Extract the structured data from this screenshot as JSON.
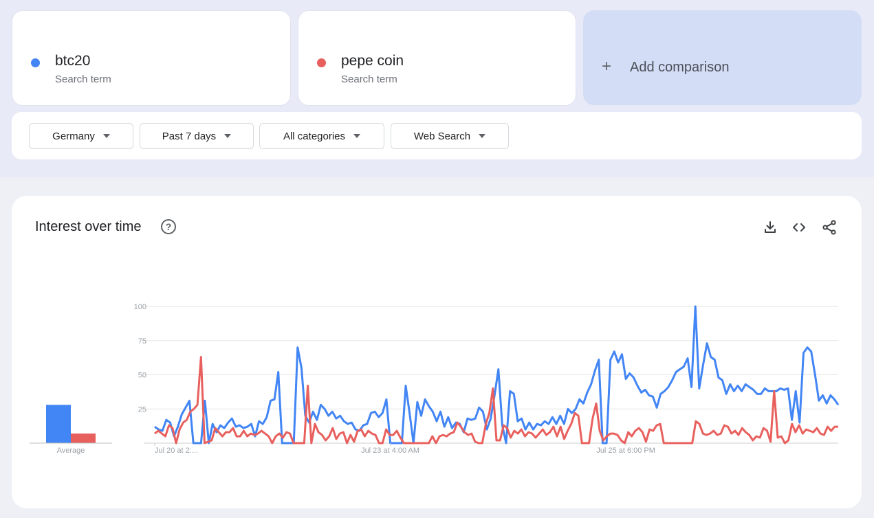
{
  "terms": [
    {
      "label": "btc20",
      "sublabel": "Search term",
      "color": "#4285f4"
    },
    {
      "label": "pepe coin",
      "sublabel": "Search term",
      "color": "#e8605d"
    }
  ],
  "add_comparison": {
    "label": "Add comparison",
    "icon": "plus-icon"
  },
  "filters": {
    "region": "Germany",
    "period": "Past 7 days",
    "category": "All categories",
    "search_type": "Web Search"
  },
  "chart_section": {
    "title": "Interest over time",
    "icons": [
      "help-icon",
      "download-icon",
      "embed-code-icon",
      "share-icon"
    ]
  },
  "chart_data": {
    "type": "line",
    "ylim": [
      0,
      100
    ],
    "y_ticks": [
      25,
      50,
      75,
      100
    ],
    "x_tick_labels": [
      "Jul 20 at 2:...",
      "Jul 23 at 4:00 AM",
      "Jul 25 at 6:00 PM"
    ],
    "x_tick_positions": [
      0,
      61,
      122
    ],
    "average_label": "Average",
    "averages": [
      {
        "name": "btc20",
        "value": 28
      },
      {
        "name": "pepe coin",
        "value": 7
      }
    ],
    "series": [
      {
        "name": "btc20",
        "color": "#4285f4",
        "values": [
          12,
          10,
          9,
          17,
          15,
          5,
          12,
          21,
          26,
          31,
          0,
          0,
          0,
          31,
          0,
          14,
          8,
          13,
          11,
          15,
          18,
          12,
          13,
          11,
          12,
          14,
          5,
          16,
          14,
          19,
          31,
          32,
          52,
          0,
          0,
          0,
          0,
          70,
          55,
          20,
          15,
          23,
          17,
          28,
          25,
          20,
          23,
          18,
          20,
          16,
          14,
          15,
          10,
          9,
          13,
          14,
          22,
          23,
          19,
          22,
          32,
          0,
          0,
          0,
          0,
          42,
          22,
          0,
          30,
          20,
          32,
          27,
          23,
          16,
          23,
          12,
          19,
          11,
          15,
          14,
          8,
          18,
          17,
          18,
          26,
          23,
          10,
          18,
          35,
          54,
          13,
          0,
          38,
          36,
          16,
          18,
          10,
          15,
          10,
          14,
          13,
          16,
          14,
          19,
          14,
          20,
          14,
          25,
          22,
          25,
          32,
          29,
          37,
          43,
          53,
          61,
          0,
          0,
          61,
          67,
          59,
          65,
          47,
          51,
          48,
          42,
          37,
          39,
          35,
          34,
          26,
          36,
          38,
          41,
          46,
          52,
          54,
          56,
          62,
          41,
          100,
          40,
          57,
          73,
          63,
          61,
          48,
          46,
          36,
          43,
          38,
          42,
          38,
          43,
          41,
          39,
          36,
          36,
          40,
          38,
          38,
          38,
          40,
          39,
          40,
          17,
          38,
          15,
          66,
          70,
          67,
          50,
          31,
          35,
          29,
          35,
          32,
          28
        ]
      },
      {
        "name": "pepe coin",
        "color": "#e8605d",
        "values": [
          7,
          9,
          7,
          5,
          13,
          11,
          0,
          10,
          15,
          17,
          23,
          25,
          28,
          63,
          0,
          1,
          2,
          11,
          8,
          5,
          8,
          8,
          11,
          5,
          5,
          9,
          5,
          7,
          6,
          7,
          9,
          7,
          5,
          0,
          5,
          7,
          4,
          8,
          7,
          0,
          0,
          0,
          0,
          42,
          0,
          14,
          8,
          6,
          2,
          5,
          11,
          3,
          7,
          8,
          0,
          6,
          1,
          9,
          10,
          5,
          9,
          7,
          6,
          0,
          0,
          10,
          6,
          6,
          9,
          4,
          0,
          0,
          0,
          0,
          0,
          0,
          0,
          0,
          5,
          0,
          5,
          6,
          5,
          7,
          8,
          15,
          12,
          8,
          6,
          7,
          1,
          0,
          0,
          14,
          22,
          40,
          2,
          2,
          13,
          11,
          4,
          9,
          7,
          10,
          5,
          8,
          7,
          4,
          7,
          10,
          6,
          8,
          12,
          5,
          12,
          3,
          9,
          14,
          22,
          20,
          0,
          0,
          0,
          18,
          29,
          9,
          2,
          5,
          7,
          7,
          6,
          2,
          0,
          8,
          5,
          9,
          11,
          8,
          1,
          10,
          9,
          13,
          14,
          0,
          0,
          0,
          0,
          0,
          0,
          0,
          0,
          0,
          16,
          14,
          7,
          6,
          7,
          9,
          6,
          7,
          13,
          12,
          7,
          9,
          6,
          11,
          8,
          6,
          2,
          5,
          4,
          11,
          9,
          1,
          38,
          4,
          5,
          0,
          2,
          14,
          8,
          13,
          7,
          10,
          9,
          8,
          11,
          7,
          6,
          12,
          9,
          12,
          12
        ]
      }
    ]
  }
}
